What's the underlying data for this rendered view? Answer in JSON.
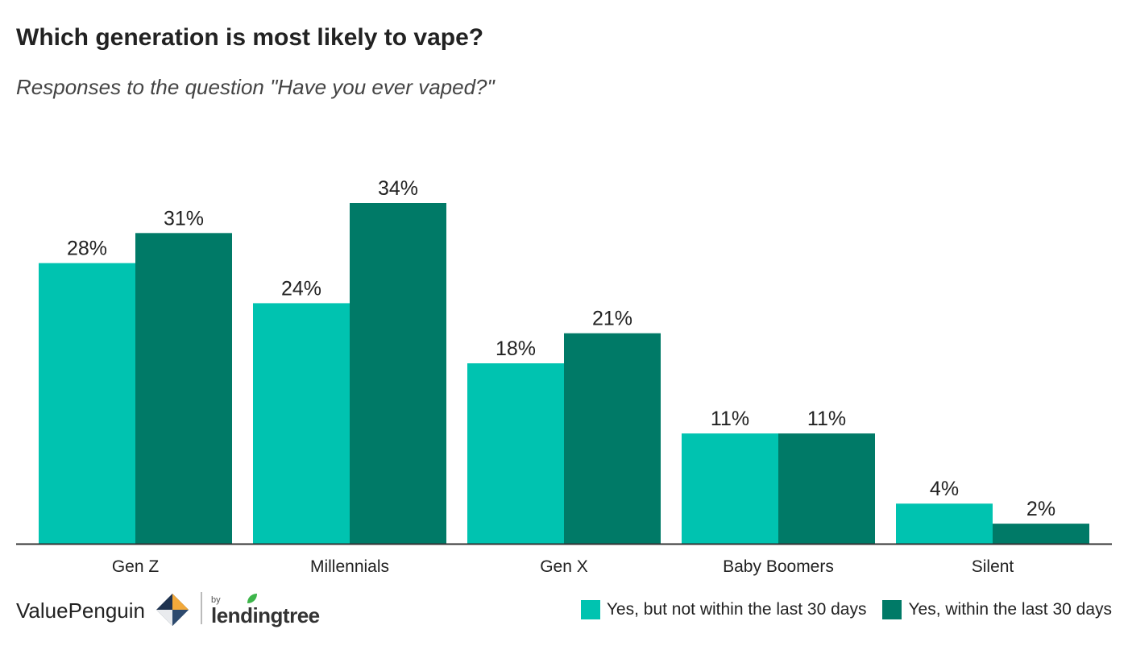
{
  "header": {
    "title": "Which generation is most likely to vape?",
    "subtitle": "Responses to the question \"Have you ever vaped?\""
  },
  "footer": {
    "brand": "ValuePenguin",
    "by": "by",
    "partner": "lendingtree"
  },
  "colors": {
    "series1": "#00c3b0",
    "series2": "#007a67",
    "axis": "#333333"
  },
  "chart_data": {
    "type": "bar",
    "title": "Which generation is most likely to vape?",
    "subtitle": "Responses to the question \"Have you ever vaped?\"",
    "categories": [
      "Gen Z",
      "Millennials",
      "Gen X",
      "Baby Boomers",
      "Silent"
    ],
    "series": [
      {
        "name": "Yes, but not within the last 30 days",
        "values": [
          28,
          24,
          18,
          11,
          4
        ],
        "labels": [
          "28%",
          "24%",
          "18%",
          "11%",
          "4%"
        ]
      },
      {
        "name": "Yes, within the last 30 days",
        "values": [
          31,
          34,
          21,
          11,
          2
        ],
        "labels": [
          "31%",
          "34%",
          "21%",
          "11%",
          "2%"
        ]
      }
    ],
    "xlabel": "",
    "ylabel": "",
    "ylim": [
      0,
      34
    ],
    "grid": false,
    "legend": "bottom-right"
  }
}
